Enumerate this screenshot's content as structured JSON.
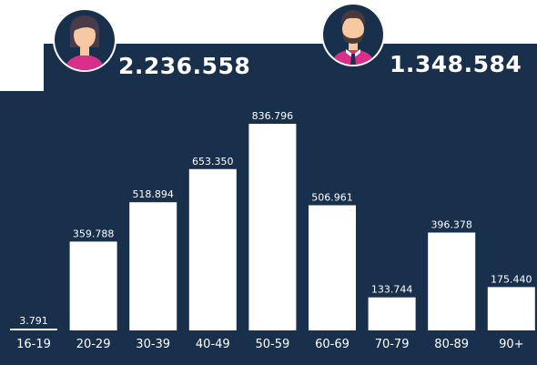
{
  "header": {
    "female_total": "2.236.558",
    "male_total": "1.348.584",
    "female_icon": "woman-avatar-icon",
    "male_icon": "man-avatar-icon"
  },
  "colors": {
    "background": "#19304d",
    "bar": "#ffffff",
    "text": "#ffffff",
    "female_shirt": "#d92e8a",
    "male_shirt": "#d92e8a",
    "skin": "#f7c9a3",
    "female_hair": "#4a3a4a",
    "male_hair": "#4a3a3a",
    "icon_circle": "#19304d"
  },
  "chart_data": {
    "type": "bar",
    "categories": [
      "16-19",
      "20-29",
      "30-39",
      "40-49",
      "50-59",
      "60-69",
      "70-79",
      "80-89",
      "90+"
    ],
    "values": [
      3791,
      359788,
      518894,
      653350,
      836796,
      506961,
      133744,
      396378,
      175440
    ],
    "value_labels": [
      "3.791",
      "359.788",
      "518.894",
      "653.350",
      "836.796",
      "506.961",
      "133.744",
      "396.378",
      "175.440"
    ],
    "title": "",
    "xlabel": "",
    "ylabel": "",
    "ylim": [
      0,
      836796
    ],
    "grid": false,
    "legend": "none"
  }
}
